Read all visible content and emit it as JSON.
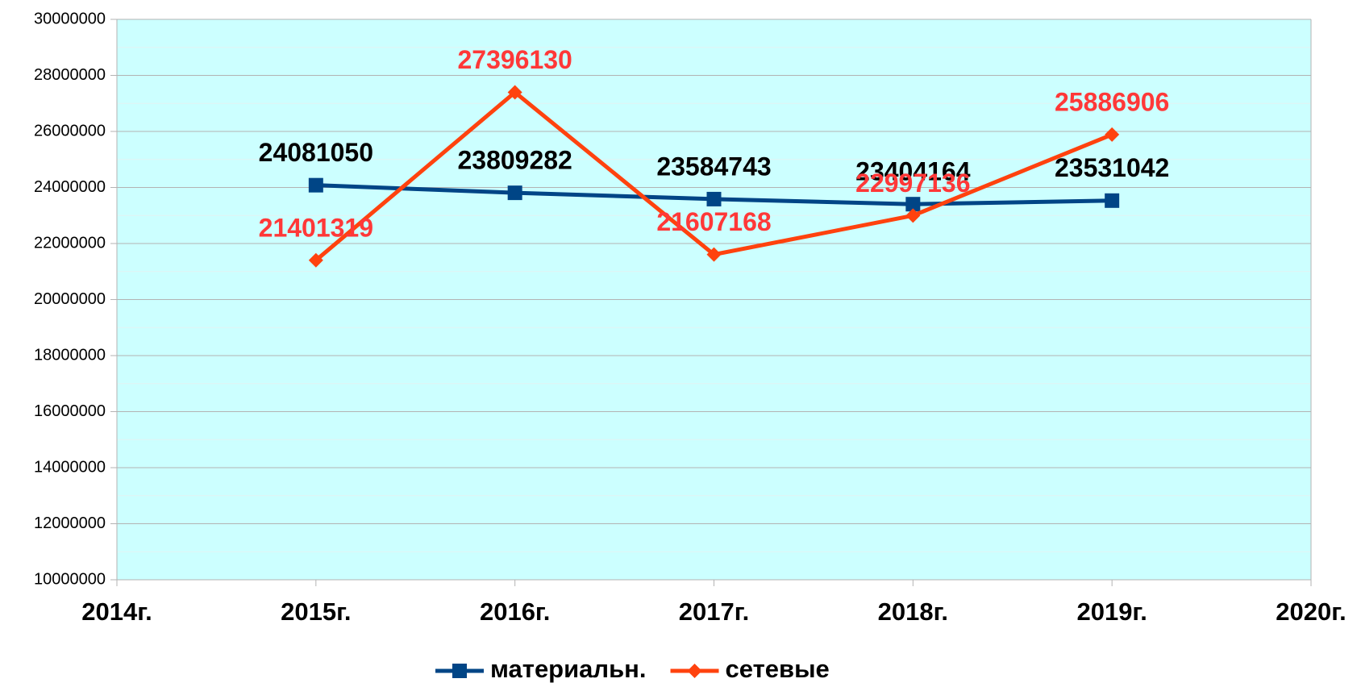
{
  "chart_data": {
    "type": "line",
    "categories": [
      "2014г.",
      "2015г.",
      "2016г.",
      "2017г.",
      "2018г.",
      "2019г.",
      "2020г."
    ],
    "series": [
      {
        "name": "материальн.",
        "color": "#004586",
        "label_color": "#000000",
        "marker": "square",
        "values": [
          null,
          24081050,
          23809282,
          23584743,
          23404164,
          23531042,
          null
        ]
      },
      {
        "name": "сетевые",
        "color": "#ff420e",
        "label_color": "#ff3838",
        "marker": "diamond",
        "values": [
          null,
          21401319,
          27396130,
          21607168,
          22997136,
          25886906,
          null
        ]
      }
    ],
    "ylim": [
      10000000,
      30000000
    ],
    "yticks": [
      10000000,
      12000000,
      14000000,
      16000000,
      18000000,
      20000000,
      22000000,
      24000000,
      26000000,
      28000000,
      30000000
    ],
    "grid": true,
    "legend": "bottom",
    "plot_background": "#ccffff"
  }
}
